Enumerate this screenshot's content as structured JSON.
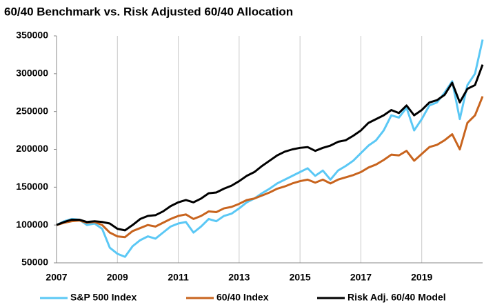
{
  "chart_data": {
    "type": "line",
    "title": "60/40 Benchmark vs. Risk Adjusted 60/40 Allocation",
    "x": [
      2007,
      2007.25,
      2007.5,
      2007.75,
      2008,
      2008.25,
      2008.5,
      2008.75,
      2009,
      2009.25,
      2009.5,
      2009.75,
      2010,
      2010.25,
      2010.5,
      2010.75,
      2011,
      2011.25,
      2011.5,
      2011.75,
      2012,
      2012.25,
      2012.5,
      2012.75,
      2013,
      2013.25,
      2013.5,
      2013.75,
      2014,
      2014.25,
      2014.5,
      2014.75,
      2015,
      2015.25,
      2015.5,
      2015.75,
      2016,
      2016.25,
      2016.5,
      2016.75,
      2017,
      2017.25,
      2017.5,
      2017.75,
      2018,
      2018.25,
      2018.5,
      2018.75,
      2019,
      2019.25,
      2019.5,
      2019.75,
      2020,
      2020.25,
      2020.5,
      2020.75,
      2021
    ],
    "series": [
      {
        "name": "S&P 500 Index",
        "color": "#5bc8f5",
        "values": [
          100000,
          105000,
          108000,
          107000,
          100000,
          102000,
          95000,
          70000,
          62000,
          58000,
          72000,
          80000,
          85000,
          82000,
          90000,
          98000,
          102000,
          104000,
          90000,
          98000,
          108000,
          105000,
          112000,
          115000,
          122000,
          130000,
          135000,
          142000,
          148000,
          155000,
          160000,
          165000,
          170000,
          175000,
          165000,
          172000,
          160000,
          172000,
          178000,
          185000,
          195000,
          205000,
          212000,
          225000,
          245000,
          242000,
          255000,
          225000,
          240000,
          258000,
          262000,
          275000,
          290000,
          240000,
          285000,
          300000,
          345000
        ]
      },
      {
        "name": "60/40 Index",
        "color": "#c8641e",
        "values": [
          100000,
          103000,
          105000,
          106000,
          103000,
          104000,
          100000,
          90000,
          85000,
          84000,
          92000,
          96000,
          100000,
          98000,
          103000,
          108000,
          112000,
          114000,
          108000,
          112000,
          118000,
          117000,
          122000,
          124000,
          128000,
          133000,
          135000,
          139000,
          143000,
          148000,
          151000,
          155000,
          158000,
          160000,
          156000,
          160000,
          155000,
          160000,
          163000,
          166000,
          170000,
          176000,
          180000,
          186000,
          193000,
          192000,
          198000,
          185000,
          194000,
          203000,
          206000,
          212000,
          220000,
          200000,
          235000,
          245000,
          270000
        ]
      },
      {
        "name": "Risk Adj. 60/40 Model",
        "color": "#000000",
        "values": [
          100000,
          104000,
          107000,
          107000,
          104000,
          105000,
          104000,
          102000,
          95000,
          93000,
          100000,
          108000,
          112000,
          113000,
          118000,
          125000,
          130000,
          133000,
          130000,
          135000,
          142000,
          143000,
          148000,
          152000,
          158000,
          165000,
          170000,
          178000,
          185000,
          192000,
          197000,
          200000,
          202000,
          203000,
          198000,
          202000,
          205000,
          210000,
          212000,
          218000,
          225000,
          235000,
          240000,
          245000,
          252000,
          248000,
          258000,
          245000,
          252000,
          262000,
          265000,
          272000,
          288000,
          262000,
          280000,
          285000,
          312000
        ]
      }
    ],
    "xlim": [
      2007,
      2021
    ],
    "xticks": [
      2007,
      2009,
      2011,
      2013,
      2015,
      2017,
      2019
    ],
    "ylim": [
      50000,
      350000
    ],
    "yticks": [
      50000,
      100000,
      150000,
      200000,
      250000,
      300000,
      350000
    ],
    "grid": true
  }
}
